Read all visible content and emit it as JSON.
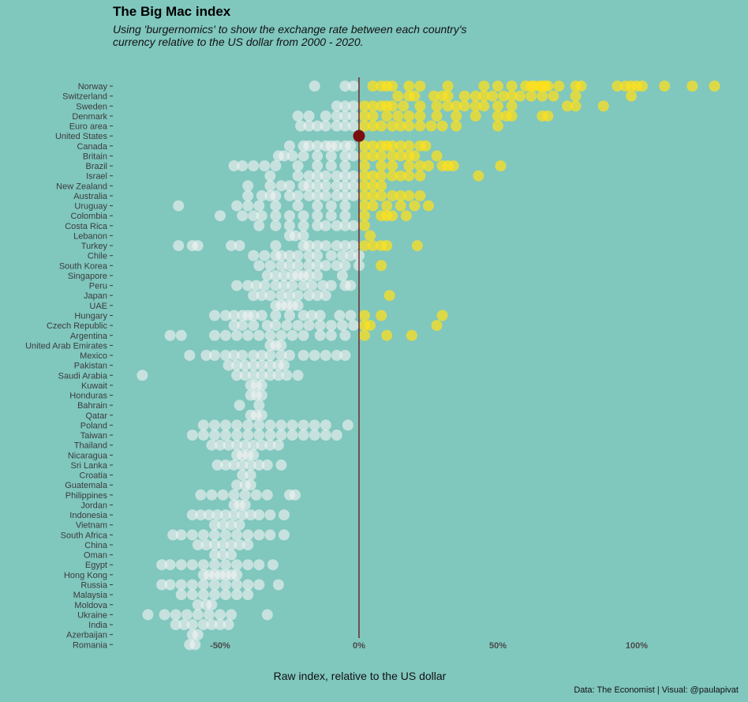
{
  "title": "The Big Mac index",
  "subtitle": "Using 'burgernomics' to show the exchange rate between each country's currency relative to the US dollar from 2000 - 2020.",
  "caption": "Data: The Economist | Visual: @paulapivat",
  "colors": {
    "background": "#80C7BE",
    "overvalued": "#FFE01A",
    "undervalued": "#F2F2F2",
    "baseline": "#6B1F1F",
    "us_point": "#7A0F0F"
  },
  "chart_data": {
    "type": "scatter",
    "title": "The Big Mac index",
    "xlabel": "Raw index, relative to the US dollar",
    "ylabel": "",
    "xlim": [
      -0.88,
      1.28
    ],
    "x_ticks": [
      -0.5,
      0,
      0.5,
      1.0
    ],
    "x_tick_labels": [
      "-50%",
      "0%",
      "50%",
      "100%"
    ],
    "baseline_x": 0,
    "grid": false,
    "legend": "none",
    "categories": [
      "Norway",
      "Switzerland",
      "Sweden",
      "Denmark",
      "Euro area",
      "United States",
      "Canada",
      "Britain",
      "Brazil",
      "Israel",
      "New Zealand",
      "Australia",
      "Uruguay",
      "Colombia",
      "Costa Rica",
      "Lebanon",
      "Turkey",
      "Chile",
      "South Korea",
      "Singapore",
      "Peru",
      "Japan",
      "UAE",
      "Hungary",
      "Czech Republic",
      "Argentina",
      "United Arab Emirates",
      "Mexico",
      "Pakistan",
      "Saudi Arabia",
      "Kuwait",
      "Honduras",
      "Bahrain",
      "Qatar",
      "Poland",
      "Taiwan",
      "Thailand",
      "Nicaragua",
      "Sri Lanka",
      "Croatia",
      "Guatemala",
      "Philippines",
      "Jordan",
      "Indonesia",
      "Vietnam",
      "South Africa",
      "China",
      "Oman",
      "Egypt",
      "Hong Kong",
      "Russia",
      "Malaysia",
      "Moldova",
      "Ukraine",
      "India",
      "Azerbaijan",
      "Romania"
    ],
    "series": [
      {
        "category": "Norway",
        "values": [
          -0.16,
          -0.05,
          -0.02,
          0.05,
          0.08,
          0.1,
          0.12,
          0.18,
          0.22,
          0.32,
          0.45,
          0.5,
          0.55,
          0.6,
          0.62,
          0.63,
          0.65,
          0.66,
          0.67,
          0.68,
          0.72,
          0.78,
          0.8,
          0.93,
          0.96,
          0.98,
          1.0,
          1.02,
          1.1,
          1.2,
          1.28
        ]
      },
      {
        "category": "Switzerland",
        "values": [
          0.14,
          0.18,
          0.2,
          0.27,
          0.3,
          0.32,
          0.38,
          0.42,
          0.45,
          0.48,
          0.52,
          0.55,
          0.58,
          0.62,
          0.66,
          0.7,
          0.78,
          0.98
        ]
      },
      {
        "category": "Sweden",
        "values": [
          -0.08,
          -0.05,
          -0.02,
          0.02,
          0.05,
          0.08,
          0.1,
          0.12,
          0.16,
          0.22,
          0.28,
          0.32,
          0.35,
          0.38,
          0.42,
          0.45,
          0.5,
          0.55,
          0.75,
          0.78,
          0.88
        ]
      },
      {
        "category": "Denmark",
        "values": [
          -0.22,
          -0.18,
          -0.12,
          -0.08,
          -0.05,
          -0.02,
          0.02,
          0.05,
          0.1,
          0.14,
          0.18,
          0.22,
          0.28,
          0.35,
          0.42,
          0.5,
          0.53,
          0.55,
          0.66,
          0.68
        ]
      },
      {
        "category": "Euro area",
        "values": [
          -0.21,
          -0.18,
          -0.15,
          -0.12,
          -0.08,
          -0.05,
          -0.02,
          0.02,
          0.05,
          0.08,
          0.12,
          0.15,
          0.18,
          0.22,
          0.26,
          0.3,
          0.35,
          0.5
        ]
      },
      {
        "category": "United States",
        "values": [
          0.0
        ]
      },
      {
        "category": "Canada",
        "values": [
          -0.25,
          -0.2,
          -0.18,
          -0.15,
          -0.12,
          -0.1,
          -0.08,
          -0.05,
          -0.03,
          0.02,
          0.05,
          0.08,
          0.1,
          0.12,
          0.15,
          0.18,
          0.22,
          0.24
        ]
      },
      {
        "category": "Britain",
        "values": [
          -0.29,
          -0.27,
          -0.24,
          -0.2,
          -0.15,
          -0.1,
          -0.05,
          -0.02,
          0.02,
          0.05,
          0.08,
          0.12,
          0.15,
          0.18,
          0.2,
          0.28
        ]
      },
      {
        "category": "Brazil",
        "values": [
          -0.45,
          -0.42,
          -0.38,
          -0.34,
          -0.3,
          -0.22,
          -0.15,
          -0.1,
          -0.05,
          0.02,
          0.08,
          0.12,
          0.18,
          0.22,
          0.25,
          0.3,
          0.32,
          0.34,
          0.51
        ]
      },
      {
        "category": "Israel",
        "values": [
          -0.32,
          -0.22,
          -0.18,
          -0.15,
          -0.12,
          -0.08,
          -0.05,
          -0.02,
          0.02,
          0.05,
          0.08,
          0.12,
          0.15,
          0.18,
          0.22,
          0.43
        ]
      },
      {
        "category": "New Zealand",
        "values": [
          -0.4,
          -0.32,
          -0.28,
          -0.25,
          -0.2,
          -0.18,
          -0.15,
          -0.12,
          -0.08,
          -0.05,
          -0.02,
          0.02,
          0.05,
          0.08
        ]
      },
      {
        "category": "Australia",
        "values": [
          -0.4,
          -0.35,
          -0.32,
          -0.3,
          -0.25,
          -0.22,
          -0.18,
          -0.15,
          -0.12,
          -0.08,
          -0.05,
          -0.02,
          0.02,
          0.05,
          0.08,
          0.12,
          0.15,
          0.18,
          0.22
        ]
      },
      {
        "category": "Uruguay",
        "values": [
          -0.65,
          -0.44,
          -0.4,
          -0.36,
          -0.3,
          -0.22,
          -0.15,
          -0.1,
          -0.05,
          0.02,
          0.05,
          0.1,
          0.15,
          0.2,
          0.25
        ]
      },
      {
        "category": "Colombia",
        "values": [
          -0.5,
          -0.42,
          -0.38,
          -0.35,
          -0.3,
          -0.25,
          -0.2,
          -0.15,
          -0.1,
          -0.05,
          0.02,
          0.08,
          0.1,
          0.12,
          0.17
        ]
      },
      {
        "category": "Costa Rica",
        "values": [
          -0.36,
          -0.3,
          -0.25,
          -0.2,
          -0.15,
          -0.12,
          -0.08,
          -0.05,
          -0.02,
          0.02
        ]
      },
      {
        "category": "Lebanon",
        "values": [
          -0.25,
          -0.23,
          -0.2,
          0.04
        ]
      },
      {
        "category": "Turkey",
        "values": [
          -0.65,
          -0.6,
          -0.58,
          -0.46,
          -0.43,
          -0.3,
          -0.2,
          -0.18,
          -0.15,
          -0.12,
          -0.08,
          -0.05,
          -0.02,
          0.02,
          0.05,
          0.08,
          0.1,
          0.21
        ]
      },
      {
        "category": "Chile",
        "values": [
          -0.38,
          -0.34,
          -0.3,
          -0.28,
          -0.25,
          -0.22,
          -0.18,
          -0.15,
          -0.1,
          -0.06,
          -0.03,
          0.0
        ]
      },
      {
        "category": "South Korea",
        "values": [
          -0.36,
          -0.32,
          -0.28,
          -0.25,
          -0.22,
          -0.18,
          -0.15,
          -0.12,
          -0.08,
          -0.05,
          0.0,
          0.08
        ]
      },
      {
        "category": "Singapore",
        "values": [
          -0.33,
          -0.3,
          -0.27,
          -0.24,
          -0.22,
          -0.2,
          -0.18,
          -0.15,
          -0.06
        ]
      },
      {
        "category": "Peru",
        "values": [
          -0.44,
          -0.4,
          -0.37,
          -0.34,
          -0.3,
          -0.27,
          -0.24,
          -0.2,
          -0.17,
          -0.13,
          -0.1,
          -0.05,
          -0.03
        ]
      },
      {
        "category": "Japan",
        "values": [
          -0.38,
          -0.35,
          -0.32,
          -0.28,
          -0.25,
          -0.22,
          -0.18,
          -0.15,
          -0.12,
          0.11
        ]
      },
      {
        "category": "UAE",
        "values": [
          -0.3,
          -0.28,
          -0.26,
          -0.24,
          -0.22
        ]
      },
      {
        "category": "Hungary",
        "values": [
          -0.52,
          -0.48,
          -0.45,
          -0.42,
          -0.4,
          -0.38,
          -0.35,
          -0.3,
          -0.25,
          -0.2,
          -0.17,
          -0.14,
          -0.07,
          -0.03,
          0.02,
          0.08,
          0.3
        ]
      },
      {
        "category": "Czech Republic",
        "values": [
          -0.45,
          -0.42,
          -0.38,
          -0.33,
          -0.3,
          -0.26,
          -0.22,
          -0.18,
          -0.14,
          -0.1,
          -0.06,
          -0.02,
          0.02,
          0.04,
          0.28
        ]
      },
      {
        "category": "Argentina",
        "values": [
          -0.68,
          -0.64,
          -0.52,
          -0.48,
          -0.44,
          -0.4,
          -0.36,
          -0.32,
          -0.28,
          -0.24,
          -0.2,
          -0.14,
          -0.1,
          -0.05,
          0.02,
          0.1,
          0.19
        ]
      },
      {
        "category": "United Arab Emirates",
        "values": [
          -0.32,
          -0.3,
          -0.28
        ]
      },
      {
        "category": "Mexico",
        "values": [
          -0.61,
          -0.55,
          -0.52,
          -0.48,
          -0.45,
          -0.42,
          -0.38,
          -0.35,
          -0.32,
          -0.28,
          -0.25,
          -0.2,
          -0.16,
          -0.12,
          -0.08,
          -0.05
        ]
      },
      {
        "category": "Pakistan",
        "values": [
          -0.47,
          -0.44,
          -0.41,
          -0.38,
          -0.35,
          -0.32,
          -0.29,
          -0.27
        ]
      },
      {
        "category": "Saudi Arabia",
        "values": [
          -0.78,
          -0.44,
          -0.41,
          -0.38,
          -0.35,
          -0.32,
          -0.29,
          -0.26,
          -0.22
        ]
      },
      {
        "category": "Kuwait",
        "values": [
          -0.39,
          -0.37,
          -0.35
        ]
      },
      {
        "category": "Honduras",
        "values": [
          -0.39,
          -0.37,
          -0.35
        ]
      },
      {
        "category": "Bahrain",
        "values": [
          -0.43,
          -0.36
        ]
      },
      {
        "category": "Qatar",
        "values": [
          -0.39,
          -0.37,
          -0.35
        ]
      },
      {
        "category": "Poland",
        "values": [
          -0.56,
          -0.52,
          -0.48,
          -0.44,
          -0.4,
          -0.36,
          -0.32,
          -0.28,
          -0.24,
          -0.2,
          -0.16,
          -0.12,
          -0.04
        ]
      },
      {
        "category": "Taiwan",
        "values": [
          -0.6,
          -0.56,
          -0.52,
          -0.48,
          -0.44,
          -0.4,
          -0.36,
          -0.32,
          -0.28,
          -0.24,
          -0.2,
          -0.16,
          -0.12,
          -0.08
        ]
      },
      {
        "category": "Thailand",
        "values": [
          -0.53,
          -0.5,
          -0.47,
          -0.44,
          -0.41,
          -0.38,
          -0.35,
          -0.32,
          -0.29
        ]
      },
      {
        "category": "Nicaragua",
        "values": [
          -0.44,
          -0.42,
          -0.4,
          -0.38
        ]
      },
      {
        "category": "Sri Lanka",
        "values": [
          -0.51,
          -0.48,
          -0.45,
          -0.42,
          -0.39,
          -0.36,
          -0.33,
          -0.28
        ]
      },
      {
        "category": "Croatia",
        "values": [
          -0.42,
          -0.39
        ]
      },
      {
        "category": "Guatemala",
        "values": [
          -0.44,
          -0.41,
          -0.39
        ]
      },
      {
        "category": "Philippines",
        "values": [
          -0.57,
          -0.53,
          -0.49,
          -0.45,
          -0.41,
          -0.37,
          -0.33,
          -0.25,
          -0.23
        ]
      },
      {
        "category": "Jordan",
        "values": [
          -0.45,
          -0.43,
          -0.41
        ]
      },
      {
        "category": "Indonesia",
        "values": [
          -0.6,
          -0.57,
          -0.54,
          -0.51,
          -0.48,
          -0.45,
          -0.42,
          -0.39,
          -0.36,
          -0.32,
          -0.27
        ]
      },
      {
        "category": "Vietnam",
        "values": [
          -0.52,
          -0.49,
          -0.46,
          -0.43
        ]
      },
      {
        "category": "South Africa",
        "values": [
          -0.67,
          -0.64,
          -0.6,
          -0.56,
          -0.52,
          -0.48,
          -0.44,
          -0.4,
          -0.36,
          -0.32,
          -0.27
        ]
      },
      {
        "category": "China",
        "values": [
          -0.58,
          -0.55,
          -0.52,
          -0.49,
          -0.46,
          -0.43,
          -0.4
        ]
      },
      {
        "category": "Oman",
        "values": [
          -0.52,
          -0.49,
          -0.46
        ]
      },
      {
        "category": "Egypt",
        "values": [
          -0.71,
          -0.68,
          -0.64,
          -0.6,
          -0.56,
          -0.52,
          -0.48,
          -0.44,
          -0.4,
          -0.36,
          -0.31
        ]
      },
      {
        "category": "Hong Kong",
        "values": [
          -0.56,
          -0.54,
          -0.52,
          -0.5,
          -0.48,
          -0.46,
          -0.44
        ]
      },
      {
        "category": "Russia",
        "values": [
          -0.71,
          -0.68,
          -0.64,
          -0.6,
          -0.56,
          -0.52,
          -0.48,
          -0.44,
          -0.4,
          -0.36,
          -0.29
        ]
      },
      {
        "category": "Malaysia",
        "values": [
          -0.64,
          -0.6,
          -0.56,
          -0.52,
          -0.48,
          -0.44,
          -0.4
        ]
      },
      {
        "category": "Moldova",
        "values": [
          -0.58,
          -0.55,
          -0.53
        ]
      },
      {
        "category": "Ukraine",
        "values": [
          -0.76,
          -0.7,
          -0.66,
          -0.62,
          -0.58,
          -0.54,
          -0.5,
          -0.46,
          -0.33
        ]
      },
      {
        "category": "India",
        "values": [
          -0.66,
          -0.63,
          -0.6,
          -0.56,
          -0.53,
          -0.5,
          -0.47
        ]
      },
      {
        "category": "Azerbaijan",
        "values": [
          -0.6,
          -0.58
        ]
      },
      {
        "category": "Romania",
        "values": [
          -0.61,
          -0.59
        ]
      }
    ]
  }
}
